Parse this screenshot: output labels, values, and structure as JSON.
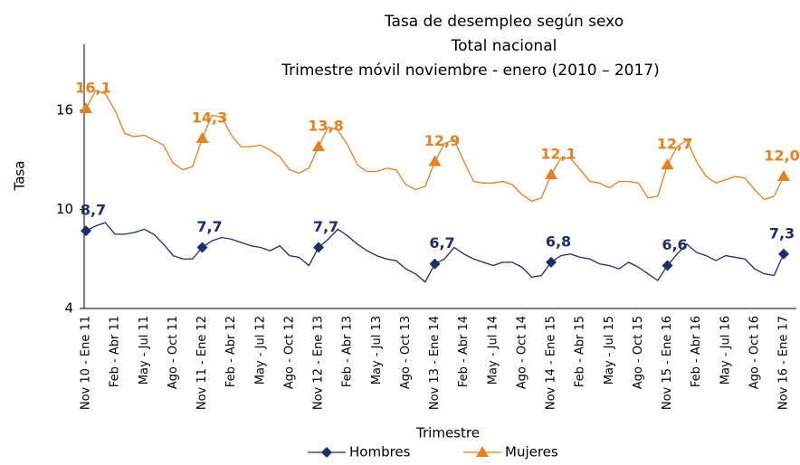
{
  "chart_data": {
    "type": "line",
    "title": [
      "Tasa de desempleo según sexo",
      "Total nacional",
      "Trimestre móvil noviembre - enero (2010 – 2017)"
    ],
    "x_label": "Trimestre",
    "y_label": "Tasa",
    "categories": [
      "Nov 10 - Ene 11",
      null,
      null,
      "Feb - Abr 11",
      null,
      null,
      "May - Jul 11",
      null,
      null,
      "Ago - Oct 11",
      null,
      null,
      "Nov 11 - Ene 12",
      null,
      null,
      "Feb - Abr 12",
      null,
      null,
      "May - Jul 12",
      null,
      null,
      "Ago - Oct 12",
      null,
      null,
      "Nov 12 - Ene 13",
      null,
      null,
      "Feb - Abr 13",
      null,
      null,
      "May - Jul 13",
      null,
      null,
      "Ago - Oct 13",
      null,
      null,
      "Nov 13 - Ene 14",
      null,
      null,
      "Feb - Abr 14",
      null,
      null,
      "May - Jul 14",
      null,
      null,
      "Ago - Oct 14",
      null,
      null,
      "Nov 14 - Ene 15",
      null,
      null,
      "Feb - Abr 15",
      null,
      null,
      "May - Jul 15",
      null,
      null,
      "Ago - Oct 15",
      null,
      null,
      "Nov 15 - Ene 16",
      null,
      null,
      "Feb - Abr 16",
      null,
      null,
      "May - Jul 16",
      null,
      null,
      "Ago - Oct 16",
      null,
      null,
      "Nov 16 - Ene 17"
    ],
    "series": [
      {
        "name": "Hombres",
        "color": "#1f2d6b",
        "marker": "diamond",
        "values": [
          8.7,
          9.0,
          9.2,
          8.5,
          8.5,
          8.6,
          8.8,
          8.5,
          7.9,
          7.2,
          7.0,
          7.0,
          7.7,
          8.1,
          8.3,
          8.2,
          8.0,
          7.8,
          7.7,
          7.5,
          7.8,
          7.2,
          7.1,
          6.6,
          7.7,
          8.2,
          8.8,
          8.4,
          7.9,
          7.5,
          7.2,
          7.0,
          6.9,
          6.4,
          6.1,
          5.6,
          6.7,
          7.0,
          7.7,
          7.3,
          7.0,
          6.8,
          6.6,
          6.8,
          6.8,
          6.5,
          5.9,
          6.0,
          6.8,
          7.2,
          7.3,
          7.1,
          7.0,
          6.7,
          6.6,
          6.4,
          6.8,
          6.5,
          6.1,
          5.7,
          6.6,
          7.3,
          7.9,
          7.4,
          7.2,
          6.9,
          7.2,
          7.1,
          7.0,
          6.4,
          6.1,
          6.0,
          7.3
        ],
        "value_labels": [
          "8,7",
          null,
          null,
          null,
          null,
          null,
          null,
          null,
          null,
          null,
          null,
          null,
          "7,7",
          null,
          null,
          null,
          null,
          null,
          null,
          null,
          null,
          null,
          null,
          null,
          "7,7",
          null,
          null,
          null,
          null,
          null,
          null,
          null,
          null,
          null,
          null,
          null,
          "6,7",
          null,
          null,
          null,
          null,
          null,
          null,
          null,
          null,
          null,
          null,
          null,
          "6,8",
          null,
          null,
          null,
          null,
          null,
          null,
          null,
          null,
          null,
          null,
          null,
          "6,6",
          null,
          null,
          null,
          null,
          null,
          null,
          null,
          null,
          null,
          null,
          null,
          "7,3"
        ]
      },
      {
        "name": "Mujeres",
        "color": "#e8801e",
        "marker": "triangle",
        "values": [
          16.1,
          17.2,
          17.0,
          16.0,
          14.6,
          14.4,
          14.5,
          14.2,
          13.9,
          12.8,
          12.4,
          12.6,
          14.3,
          15.7,
          15.6,
          14.5,
          13.8,
          13.8,
          13.9,
          13.6,
          13.2,
          12.4,
          12.2,
          12.5,
          13.8,
          15.0,
          14.8,
          13.9,
          12.7,
          12.3,
          12.3,
          12.5,
          12.4,
          11.5,
          11.2,
          11.4,
          12.9,
          14.0,
          14.2,
          12.9,
          11.7,
          11.6,
          11.6,
          11.7,
          11.5,
          10.9,
          10.5,
          10.7,
          12.1,
          13.1,
          13.1,
          12.4,
          11.7,
          11.6,
          11.3,
          11.7,
          11.7,
          11.6,
          10.7,
          10.8,
          12.7,
          13.8,
          14.2,
          12.9,
          12.0,
          11.6,
          11.8,
          12.0,
          11.9,
          11.2,
          10.6,
          10.8,
          12.0
        ],
        "value_labels": [
          "16,1",
          null,
          null,
          null,
          null,
          null,
          null,
          null,
          null,
          null,
          null,
          null,
          "14,3",
          null,
          null,
          null,
          null,
          null,
          null,
          null,
          null,
          null,
          null,
          null,
          "13,8",
          null,
          null,
          null,
          null,
          null,
          null,
          null,
          null,
          null,
          null,
          null,
          "12,9",
          null,
          null,
          null,
          null,
          null,
          null,
          null,
          null,
          null,
          null,
          null,
          "12,1",
          null,
          null,
          null,
          null,
          null,
          null,
          null,
          null,
          null,
          null,
          null,
          "12,7",
          null,
          null,
          null,
          null,
          null,
          null,
          null,
          null,
          null,
          null,
          null,
          "12,0"
        ]
      }
    ],
    "ylim": [
      4,
      20
    ],
    "yticks": [
      4,
      10,
      16
    ],
    "grid": false,
    "legend": "bottom"
  }
}
